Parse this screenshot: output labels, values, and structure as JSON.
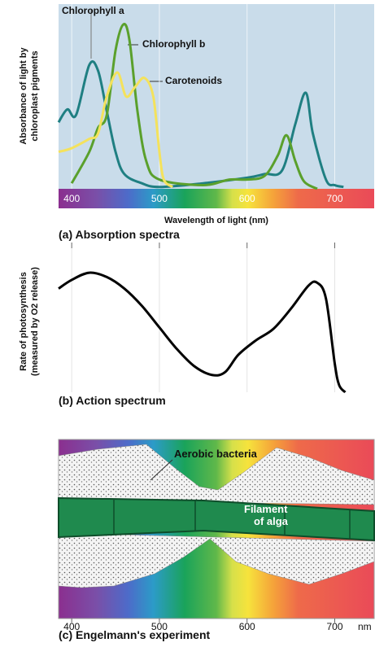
{
  "chart_data": [
    {
      "type": "line",
      "ylabel": [
        "Absorbance of light by",
        "chloroplast pigments"
      ],
      "xlabel": "Wavelength of light (nm)",
      "caption": "(a) Absorption spectra",
      "xlim": [
        385,
        745
      ],
      "ylim": [
        0,
        1
      ],
      "xticks": [
        400,
        500,
        600,
        700
      ],
      "series": [
        {
          "name": "Chlorophyll a",
          "color": "#1f7f82",
          "x": [
            385,
            395,
            405,
            420,
            430,
            440,
            450,
            460,
            480,
            500,
            550,
            600,
            620,
            640,
            655,
            667,
            675,
            690,
            700,
            710
          ],
          "values": [
            0.36,
            0.43,
            0.4,
            0.67,
            0.64,
            0.42,
            0.2,
            0.08,
            0.03,
            0.01,
            0.03,
            0.06,
            0.08,
            0.1,
            0.35,
            0.52,
            0.3,
            0.05,
            0.02,
            0.01
          ]
        },
        {
          "name": "Chlorophyll b",
          "color": "#5aa02c",
          "x": [
            400,
            420,
            430,
            440,
            450,
            459,
            466,
            475,
            485,
            500,
            550,
            580,
            600,
            620,
            635,
            645,
            655,
            665,
            680
          ],
          "values": [
            0.03,
            0.2,
            0.33,
            0.4,
            0.75,
            0.89,
            0.8,
            0.42,
            0.15,
            0.05,
            0.02,
            0.05,
            0.05,
            0.07,
            0.18,
            0.29,
            0.15,
            0.04,
            0.0
          ]
        },
        {
          "name": "Carotenoids",
          "color": "#f4e25c",
          "x": [
            385,
            400,
            420,
            430,
            440,
            452,
            462,
            472,
            483,
            493,
            500,
            505,
            515
          ],
          "values": [
            0.2,
            0.22,
            0.27,
            0.3,
            0.5,
            0.63,
            0.5,
            0.55,
            0.6,
            0.5,
            0.2,
            0.05,
            0.01
          ]
        }
      ]
    },
    {
      "type": "line",
      "ylabel": [
        "Rate of photosynthesis",
        "(measured by O2 release)"
      ],
      "caption": "(b) Action spectrum",
      "xlim": [
        385,
        745
      ],
      "ylim": [
        0,
        1
      ],
      "xticks": [
        400,
        500,
        600,
        700
      ],
      "series": [
        {
          "color": "#000000",
          "x": [
            385,
            400,
            420,
            440,
            460,
            480,
            500,
            520,
            540,
            560,
            575,
            590,
            610,
            630,
            650,
            670,
            680,
            690,
            700,
            705,
            712
          ],
          "values": [
            0.72,
            0.78,
            0.83,
            0.8,
            0.72,
            0.6,
            0.45,
            0.3,
            0.18,
            0.12,
            0.14,
            0.26,
            0.36,
            0.44,
            0.58,
            0.74,
            0.76,
            0.65,
            0.2,
            0.05,
            0.0
          ]
        }
      ]
    },
    {
      "type": "diagram",
      "caption": "(c) Engelmann's experiment",
      "unit": "nm",
      "xlim": [
        385,
        745
      ],
      "xticks": [
        400,
        500,
        600,
        700
      ],
      "annotations": [
        "Aerobic bacteria",
        "Filament",
        "of alga"
      ]
    }
  ]
}
